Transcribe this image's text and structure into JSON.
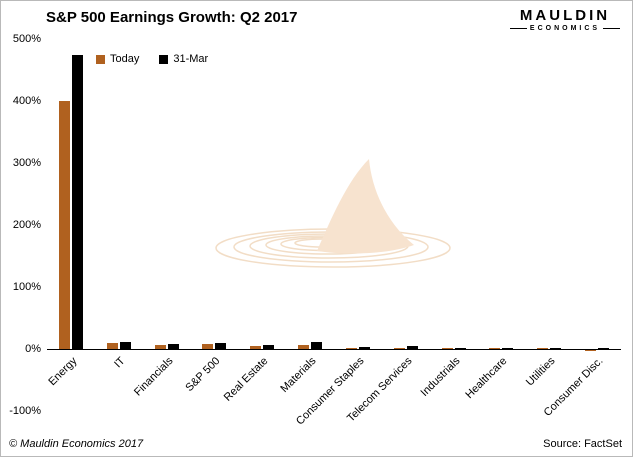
{
  "header": {
    "title": "S&P 500 Earnings Growth: Q2 2017"
  },
  "logo": {
    "line1": "MAULDIN",
    "line2": "ECONOMICS"
  },
  "footer": {
    "copyright": "© Mauldin Economics 2017",
    "source": "Source: FactSet"
  },
  "chart_data": {
    "type": "bar",
    "title": "S&P 500 Earnings Growth: Q2 2017",
    "categories": [
      "Energy",
      "IT",
      "Financials",
      "S&P 500",
      "Real Estate",
      "Materials",
      "Consumer Staples",
      "Telecom Services",
      "Industrials",
      "Healthcare",
      "Utilities",
      "Consumer Disc."
    ],
    "series": [
      {
        "name": "Today",
        "color": "#b0611f",
        "values": [
          400,
          10,
          7,
          8,
          5,
          6,
          2,
          1,
          0.5,
          1,
          0.5,
          -2
        ]
      },
      {
        "name": "31-Mar",
        "color": "#000000",
        "values": [
          475,
          12,
          8,
          9,
          6,
          11,
          4,
          5,
          1,
          2,
          1,
          2
        ]
      }
    ],
    "xlabel": "",
    "ylabel": "",
    "ylim": [
      -100,
      500
    ],
    "yticks": [
      500,
      400,
      300,
      200,
      100,
      0,
      -100
    ],
    "ytick_labels": [
      "500%",
      "400%",
      "300%",
      "200%",
      "100%",
      "0%",
      "-100%"
    ],
    "grid": false,
    "legend_position": "top-left-inside",
    "watermark": "shark-fin-ripples"
  }
}
